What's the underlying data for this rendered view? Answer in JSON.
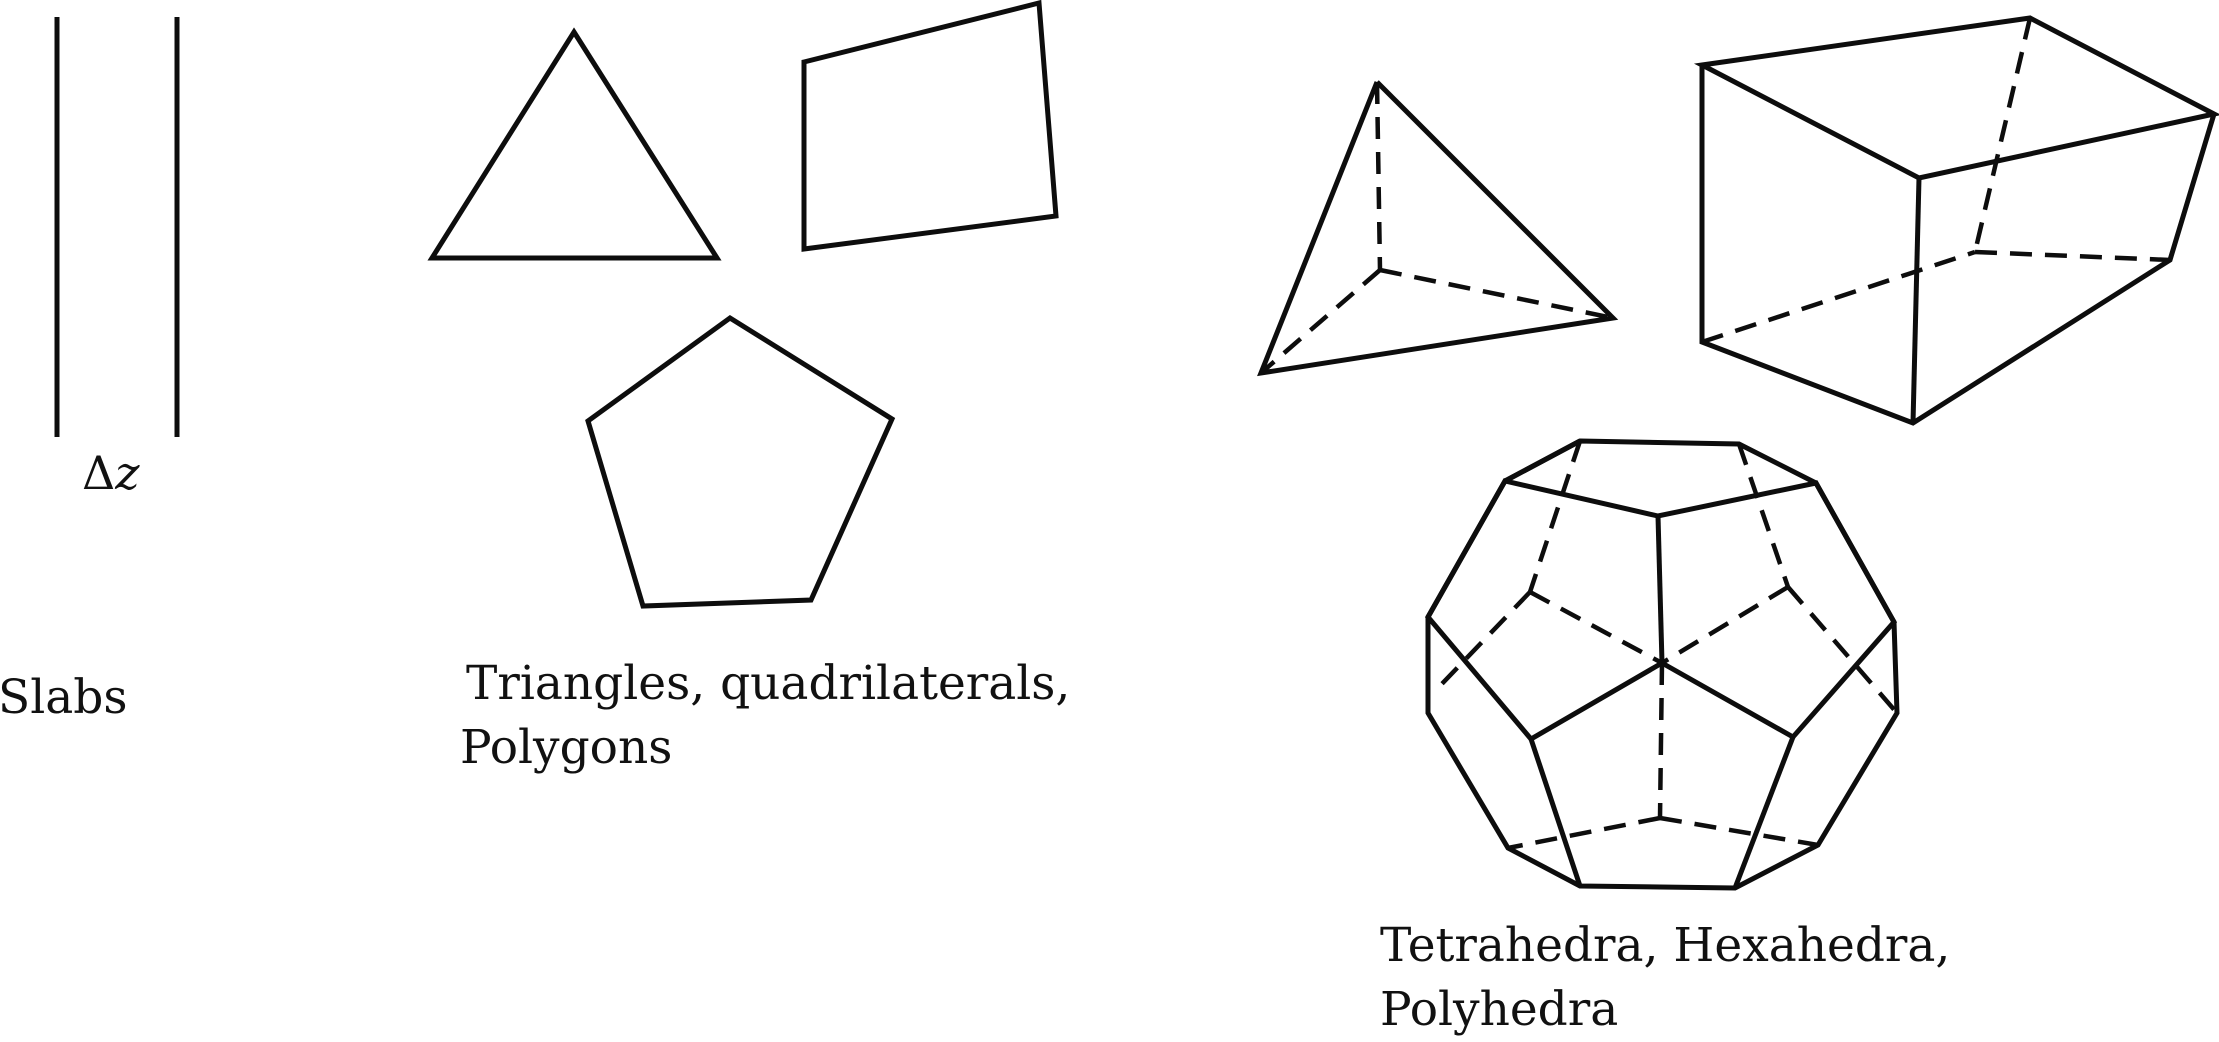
{
  "slabs": {
    "label": "Slabs",
    "thickness_label": {
      "symbol": "Δ",
      "variable": "z"
    }
  },
  "planar": {
    "caption_line1": "Triangles, quadrilaterals,",
    "caption_line2": "Polygons"
  },
  "solids": {
    "caption_line1": "Tetrahedra, Hexahedra,",
    "caption_line2": "Polyhedra"
  },
  "style": {
    "stroke_color": "#0d0d0d",
    "background": "#ffffff"
  }
}
